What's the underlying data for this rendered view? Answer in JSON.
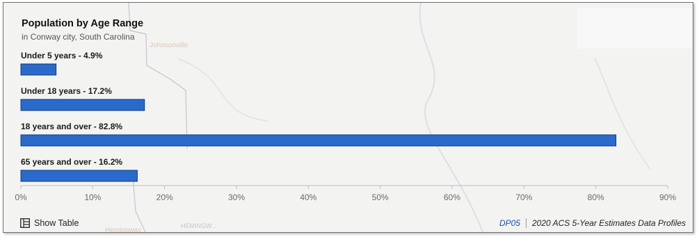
{
  "chart_data": {
    "type": "bar",
    "orientation": "horizontal",
    "title": "Population by Age Range",
    "subtitle": "in Conway city, South Carolina",
    "categories": [
      "Under 5 years",
      "Under 18 years",
      "18 years and over",
      "65 years and over"
    ],
    "values": [
      4.9,
      17.2,
      82.8,
      16.2
    ],
    "bar_labels": [
      "Under 5 years - 4.9%",
      "Under 18 years - 17.2%",
      "18 years and over - 82.8%",
      "65 years and over - 16.2%"
    ],
    "xlim": [
      0,
      90
    ],
    "x_ticks": [
      0,
      10,
      20,
      30,
      40,
      50,
      60,
      70,
      80,
      90
    ],
    "x_tick_labels": [
      "0%",
      "10%",
      "20%",
      "30%",
      "40%",
      "50%",
      "60%",
      "70%",
      "80%",
      "90%"
    ],
    "bar_color": "#2a6acb",
    "bar_border_color": "#123a7a",
    "grid": false
  },
  "footer": {
    "show_table_label": "Show Table",
    "show_table_icon": "table-icon",
    "source_code": "DP05",
    "source_text": "2020 ACS 5-Year Estimates Data Profiles"
  },
  "map_labels": [
    "Johnsonville",
    "HEMINGW...",
    "Hemingway"
  ]
}
